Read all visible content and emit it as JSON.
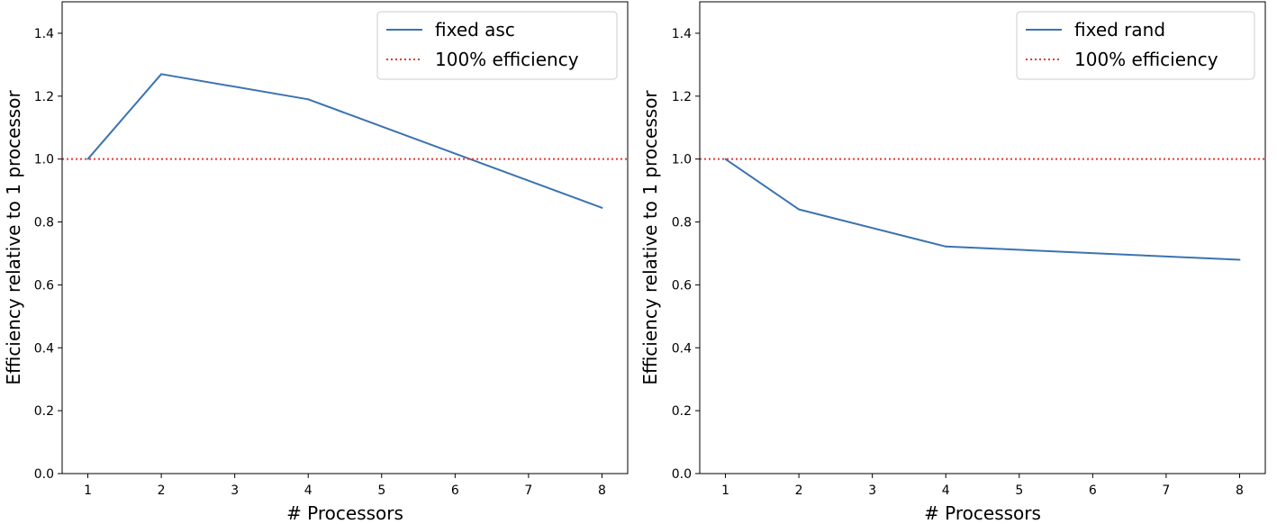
{
  "chart_data": [
    {
      "type": "line",
      "xlabel": "# Processors",
      "ylabel": "Efficiency relative to 1 processor",
      "xlim": [
        0.65,
        8.35
      ],
      "ylim": [
        0.0,
        1.5
      ],
      "xticks": [
        1,
        2,
        3,
        4,
        5,
        6,
        7,
        8
      ],
      "yticks": [
        0.0,
        0.2,
        0.4,
        0.6,
        0.8,
        1.0,
        1.2,
        1.4
      ],
      "grid": false,
      "legend_position": "top-right",
      "series": [
        {
          "name": "fixed asc",
          "style": "solid",
          "color": "#3b73b0",
          "x": [
            1,
            2,
            4,
            8
          ],
          "y": [
            1.0,
            1.27,
            1.19,
            0.845
          ]
        },
        {
          "name": "100% efficiency",
          "style": "dotted",
          "color": "#e8392f",
          "hline": 1.0
        }
      ]
    },
    {
      "type": "line",
      "xlabel": "# Processors",
      "ylabel": "Efficiency relative to 1 processor",
      "xlim": [
        0.65,
        8.35
      ],
      "ylim": [
        0.0,
        1.5
      ],
      "xticks": [
        1,
        2,
        3,
        4,
        5,
        6,
        7,
        8
      ],
      "yticks": [
        0.0,
        0.2,
        0.4,
        0.6,
        0.8,
        1.0,
        1.2,
        1.4
      ],
      "grid": false,
      "legend_position": "top-right",
      "series": [
        {
          "name": "fixed rand",
          "style": "solid",
          "color": "#3b73b0",
          "x": [
            1,
            2,
            4,
            8
          ],
          "y": [
            1.0,
            0.84,
            0.722,
            0.68
          ]
        },
        {
          "name": "100% efficiency",
          "style": "dotted",
          "color": "#e8392f",
          "hline": 1.0
        }
      ]
    }
  ]
}
